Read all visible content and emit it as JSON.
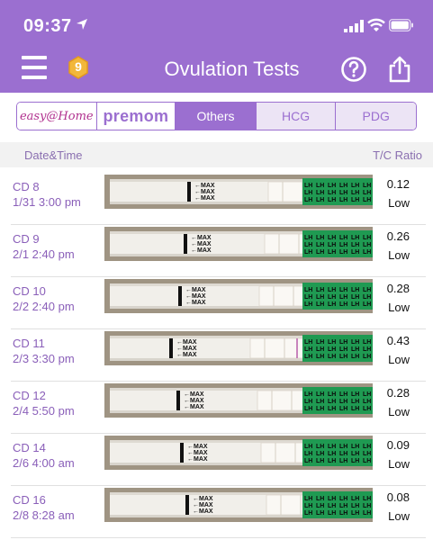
{
  "status": {
    "time": "09:37"
  },
  "header": {
    "title": "Ovulation Tests",
    "coin_count": "9"
  },
  "segments": {
    "easy_logo": "easy@Home",
    "premom_logo": "premom",
    "others": "Others",
    "hcg": "HCG",
    "pdg": "PDG"
  },
  "columns": {
    "date": "Date&Time",
    "ratio": "T/C Ratio"
  },
  "strip_text": {
    "max": "MAX",
    "lh": "LH"
  },
  "colors": {
    "brand": "#9b6fd0",
    "strip_green": "#1f9a52",
    "test_line": "#b04aa0"
  },
  "rows": [
    {
      "cd": "CD 8",
      "datetime": "1/31 3:00 pm",
      "ratio": "0.12",
      "level": "Low",
      "line_strength": 0.12
    },
    {
      "cd": "CD 9",
      "datetime": "2/1 2:40 pm",
      "ratio": "0.26",
      "level": "Low",
      "line_strength": 0.26
    },
    {
      "cd": "CD 10",
      "datetime": "2/2 2:40 pm",
      "ratio": "0.28",
      "level": "Low",
      "line_strength": 0.28
    },
    {
      "cd": "CD 11",
      "datetime": "2/3 3:30 pm",
      "ratio": "0.43",
      "level": "Low",
      "line_strength": 0.43
    },
    {
      "cd": "CD 12",
      "datetime": "2/4 5:50 pm",
      "ratio": "0.28",
      "level": "Low",
      "line_strength": 0.28
    },
    {
      "cd": "CD 14",
      "datetime": "2/6 4:00 am",
      "ratio": "0.09",
      "level": "Low",
      "line_strength": 0.09
    },
    {
      "cd": "CD 16",
      "datetime": "2/8 8:28 am",
      "ratio": "0.08",
      "level": "Low",
      "line_strength": 0.08
    }
  ]
}
